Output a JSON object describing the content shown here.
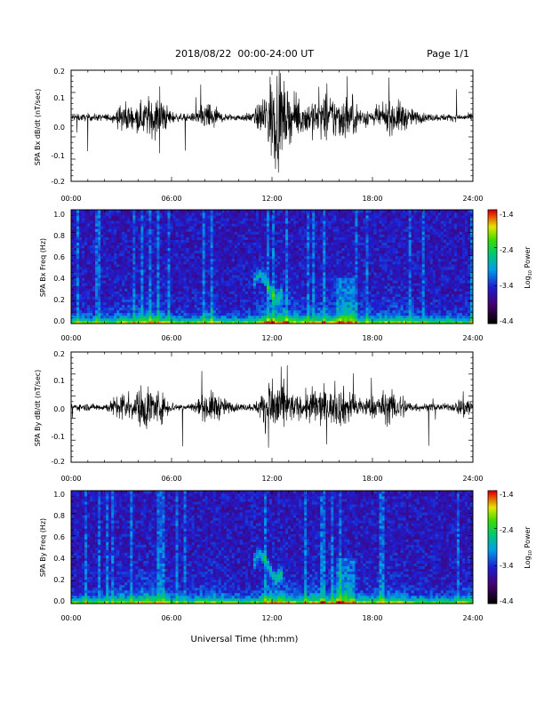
{
  "header": {
    "title": "2018/08/22  00:00-24:00 UT",
    "page": "Page 1/1"
  },
  "xaxis_label": "Universal Time (hh:mm)",
  "time_ticks": [
    "00:00",
    "06:00",
    "12:00",
    "18:00",
    "24:00"
  ],
  "chart_data": [
    {
      "type": "line",
      "ylabel": "SPA Bx dB/dt (nT/sec)",
      "xlim": [
        0,
        24
      ],
      "ylim": [
        -0.2,
        0.2
      ],
      "ytick_labels": [
        "0.2",
        "0.1",
        "0.0",
        "-0.1",
        "-0.2"
      ],
      "series": [
        {
          "color": "#000000",
          "baseline": 0.03
        }
      ]
    },
    {
      "type": "heatmap",
      "ylabel": "SPA Bx Freq (Hz)",
      "xlim": [
        0,
        24
      ],
      "ylim": [
        0.0,
        1.0
      ],
      "ytick_labels": [
        "1.0",
        "0.8",
        "0.6",
        "0.4",
        "0.2",
        "0.0"
      ],
      "colorbar": {
        "label": "Log10 Power",
        "label_text": "Log",
        "label_sub": "10",
        "label_suffix": " Power",
        "ticks": [
          "-1.4",
          "-2.4",
          "-3.4",
          "-4.4"
        ],
        "range": [
          -4.4,
          -1.4
        ]
      }
    },
    {
      "type": "line",
      "ylabel": "SPA By dB/dt (nT/sec)",
      "xlim": [
        0,
        24
      ],
      "ylim": [
        -0.2,
        0.2
      ],
      "ytick_labels": [
        "0.2",
        "0.1",
        "0.0",
        "-0.1",
        "-0.2"
      ],
      "series": [
        {
          "color": "#000000",
          "baseline": 0.0
        }
      ]
    },
    {
      "type": "heatmap",
      "ylabel": "SPA By Freq (Hz)",
      "xlim": [
        0,
        24
      ],
      "ylim": [
        0.0,
        1.0
      ],
      "ytick_labels": [
        "1.0",
        "0.8",
        "0.6",
        "0.4",
        "0.2",
        "0.0"
      ],
      "colorbar": {
        "label": "Log10 Power",
        "label_text": "Log",
        "label_sub": "10",
        "label_suffix": " Power",
        "ticks": [
          "-1.4",
          "-2.4",
          "-3.4",
          "-4.4"
        ],
        "range": [
          -4.4,
          -1.4
        ]
      }
    }
  ]
}
